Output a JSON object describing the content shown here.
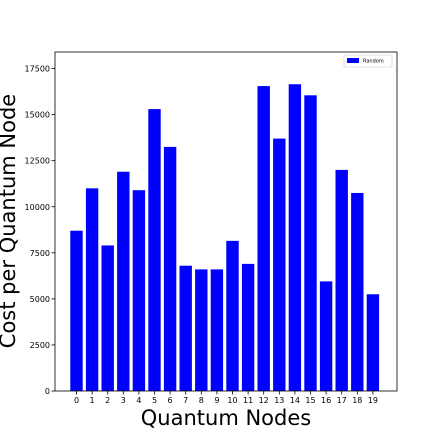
{
  "chart_data": {
    "type": "bar",
    "title": "",
    "xlabel": "Quantum Nodes",
    "ylabel": "Cost per Quantum Node",
    "categories": [
      "0",
      "1",
      "2",
      "3",
      "4",
      "5",
      "6",
      "7",
      "8",
      "9",
      "10",
      "11",
      "12",
      "13",
      "14",
      "15",
      "16",
      "17",
      "18",
      "19"
    ],
    "series": [
      {
        "name": "Random",
        "color": "#0000ff",
        "values": [
          8700,
          11000,
          7900,
          11900,
          10900,
          15300,
          13250,
          6800,
          6600,
          6600,
          8150,
          6900,
          16550,
          13700,
          16650,
          16050,
          5950,
          12000,
          10750,
          5250
        ]
      }
    ],
    "ylim": [
      0,
      18400
    ],
    "yticks": [
      "0",
      "2500",
      "5000",
      "7500",
      "10000",
      "12500",
      "15000",
      "17500"
    ],
    "ytick_values": [
      0,
      2500,
      5000,
      7500,
      10000,
      12500,
      15000,
      17500
    ],
    "grid": false,
    "legend_position": "top-right"
  }
}
